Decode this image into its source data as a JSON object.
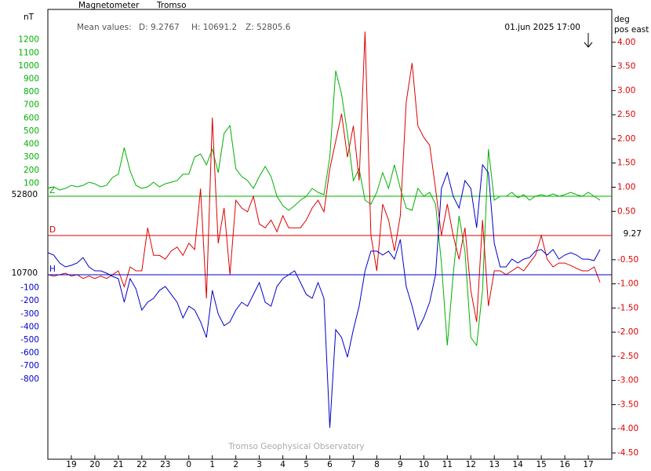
{
  "chart_data": {
    "type": "line",
    "title": "Magnetometer",
    "subtitle": "Tromso",
    "mean_values_label": "Mean values:",
    "mean_values": [
      "D: 9.2767",
      "H: 10691.2",
      "Z: 52805.6"
    ],
    "ylabel": "nT",
    "y2label": [
      "deg",
      "pos east"
    ],
    "timestamp": "01.jun 2025 17:00",
    "credit": "Tromso Geophysical Observatory",
    "x": [
      0,
      0.25,
      0.5,
      0.75,
      1,
      1.25,
      1.5,
      1.75,
      2,
      2.25,
      2.5,
      2.75,
      3,
      3.25,
      3.5,
      3.75,
      4,
      4.25,
      4.5,
      4.75,
      5,
      5.25,
      5.5,
      5.75,
      6,
      6.25,
      6.5,
      6.75,
      7,
      7.25,
      7.5,
      7.75,
      8,
      8.25,
      8.5,
      8.75,
      9,
      9.25,
      9.5,
      9.75,
      10,
      10.25,
      10.5,
      10.75,
      11,
      11.25,
      11.5,
      11.75,
      12,
      12.25,
      12.5,
      12.75,
      13,
      13.25,
      13.5,
      13.75,
      14,
      14.25,
      14.5,
      14.75,
      15,
      15.25,
      15.5,
      15.75,
      16,
      16.25,
      16.5,
      16.75,
      17,
      17.25,
      17.5,
      17.75,
      18,
      18.25,
      18.5,
      18.75,
      19,
      19.25,
      19.5,
      19.75,
      20,
      20.25,
      20.5,
      20.75,
      21,
      21.25,
      21.5,
      21.75,
      22,
      22.25,
      22.5,
      22.75,
      23,
      23.25,
      23.5
    ],
    "xlim": [
      0,
      24
    ],
    "xticks": [
      {
        "value": 1,
        "label": "19"
      },
      {
        "value": 2,
        "label": "20"
      },
      {
        "value": 3,
        "label": "21"
      },
      {
        "value": 4,
        "label": "22"
      },
      {
        "value": 5,
        "label": "23"
      },
      {
        "value": 6,
        "label": "0"
      },
      {
        "value": 7,
        "label": "1"
      },
      {
        "value": 8,
        "label": "2"
      },
      {
        "value": 9,
        "label": "3"
      },
      {
        "value": 10,
        "label": "4"
      },
      {
        "value": 11,
        "label": "5"
      },
      {
        "value": 12,
        "label": "6"
      },
      {
        "value": 13,
        "label": "7"
      },
      {
        "value": 14,
        "label": "8"
      },
      {
        "value": 15,
        "label": "9"
      },
      {
        "value": 16,
        "label": "10"
      },
      {
        "value": 17,
        "label": "11"
      },
      {
        "value": 18,
        "label": "12"
      },
      {
        "value": 19,
        "label": "13"
      },
      {
        "value": 20,
        "label": "14"
      },
      {
        "value": 21,
        "label": "15"
      },
      {
        "value": 22,
        "label": "16"
      },
      {
        "value": 23,
        "label": "17"
      }
    ],
    "ylim": [
      -2017,
      1433
    ],
    "yticks": [
      1200,
      1100,
      1000,
      900,
      800,
      700,
      600,
      500,
      400,
      300,
      200,
      100
    ],
    "y3lim": [
      -1415,
      2035
    ],
    "y3ticks": [
      -100,
      -200,
      -300,
      -400,
      -500,
      -600,
      -700,
      -800
    ],
    "y2lim": [
      -4.63,
      4.68
    ],
    "y2ticks": [
      {
        "value": 4,
        "label": "4.00"
      },
      {
        "value": 3.5,
        "label": "3.50"
      },
      {
        "value": 3,
        "label": "3.00"
      },
      {
        "value": 2.5,
        "label": "2.50"
      },
      {
        "value": 2,
        "label": "2.00"
      },
      {
        "value": 1.5,
        "label": "1.50"
      },
      {
        "value": 1,
        "label": "1.00"
      },
      {
        "value": 0.5,
        "label": "0.50"
      },
      {
        "value": -0.5,
        "label": "-0.50"
      },
      {
        "value": -1,
        "label": "-1.00"
      },
      {
        "value": -1.5,
        "label": "-1.50"
      },
      {
        "value": -2,
        "label": "-2.00"
      },
      {
        "value": -2.5,
        "label": "-2.50"
      },
      {
        "value": -3,
        "label": "-3.00"
      },
      {
        "value": -3.5,
        "label": "-3.50"
      },
      {
        "value": -4,
        "label": "-4.00"
      },
      {
        "value": -4.5,
        "label": "-4.50"
      }
    ],
    "series": [
      {
        "name": "Z",
        "color": "#00b000",
        "axis": "y",
        "baseline": {
          "value": 0,
          "label": "52800"
        },
        "values": [
          60,
          72,
          48,
          60,
          84,
          72,
          84,
          108,
          96,
          72,
          84,
          144,
          169,
          373,
          193,
          84,
          60,
          72,
          108,
          72,
          96,
          108,
          120,
          169,
          169,
          301,
          325,
          241,
          361,
          181,
          482,
          542,
          211,
          151,
          120,
          60,
          151,
          229,
          151,
          0,
          -72,
          -108,
          -72,
          -30,
          0,
          60,
          30,
          12,
          301,
          963,
          783,
          482,
          120,
          211,
          -30,
          -60,
          30,
          181,
          60,
          241,
          60,
          -90,
          -108,
          60,
          0,
          30,
          -60,
          -512,
          -1144,
          -602,
          -151,
          -421,
          -1084,
          -1144,
          -722,
          361,
          -30,
          0,
          0,
          30,
          -12,
          12,
          -30,
          0,
          12,
          0,
          18,
          0,
          12,
          30,
          12,
          0,
          30,
          0,
          -30
        ]
      },
      {
        "name": "D",
        "color": "#dd0000",
        "axis": "y2",
        "baseline": {
          "value": 0,
          "label": "9.27"
        },
        "values": [
          -0.81,
          -0.84,
          -0.81,
          -0.78,
          -0.84,
          -0.81,
          -0.89,
          -0.84,
          -0.89,
          -0.84,
          -0.89,
          -0.81,
          -0.73,
          -1.06,
          -0.65,
          -0.73,
          -0.73,
          0.16,
          -0.41,
          -0.41,
          -0.49,
          -0.32,
          -0.24,
          -0.41,
          -0.16,
          -0.29,
          0.97,
          -1.3,
          2.44,
          -0.16,
          0.57,
          -0.81,
          0.73,
          0.57,
          0.49,
          0.81,
          0.24,
          0.16,
          0.32,
          0.08,
          0.41,
          0.16,
          0.16,
          0.16,
          0.32,
          0.57,
          0.73,
          0.49,
          1.38,
          1.95,
          2.52,
          1.62,
          2.27,
          1.14,
          4.22,
          0,
          -0.73,
          0.65,
          0.32,
          -0.32,
          0.41,
          2.76,
          3.57,
          2.27,
          2.03,
          1.87,
          0.97,
          0,
          0.65,
          0,
          -0.49,
          0.16,
          -1.14,
          -1.79,
          0.32,
          -1.46,
          -0.73,
          -0.73,
          -0.81,
          -0.73,
          -0.65,
          -0.73,
          -0.57,
          -0.41,
          0,
          -0.49,
          -0.65,
          -0.57,
          -0.57,
          -0.62,
          -0.68,
          -0.73,
          -0.73,
          -0.65,
          -0.97
        ]
      },
      {
        "name": "H",
        "color": "#0000cc",
        "axis": "y3",
        "baseline": {
          "value": 0,
          "label": "10700"
        },
        "values": [
          169,
          151,
          90,
          60,
          72,
          90,
          132,
          60,
          30,
          30,
          12,
          -12,
          -30,
          -211,
          -30,
          -108,
          -271,
          -211,
          -181,
          -120,
          -90,
          -151,
          -211,
          -331,
          -241,
          -271,
          -361,
          -482,
          -120,
          -301,
          -391,
          -361,
          -271,
          -211,
          -241,
          -151,
          -60,
          -211,
          -241,
          -90,
          -30,
          0,
          30,
          -60,
          -151,
          -181,
          -60,
          -181,
          -1174,
          -421,
          -482,
          -632,
          -421,
          -241,
          30,
          181,
          181,
          151,
          181,
          120,
          271,
          -90,
          -241,
          -421,
          -331,
          -211,
          0,
          662,
          783,
          602,
          512,
          722,
          662,
          361,
          843,
          783,
          241,
          60,
          60,
          120,
          90,
          120,
          132,
          181,
          193,
          151,
          193,
          120,
          151,
          169,
          151,
          120,
          120,
          108,
          193
        ]
      }
    ]
  }
}
